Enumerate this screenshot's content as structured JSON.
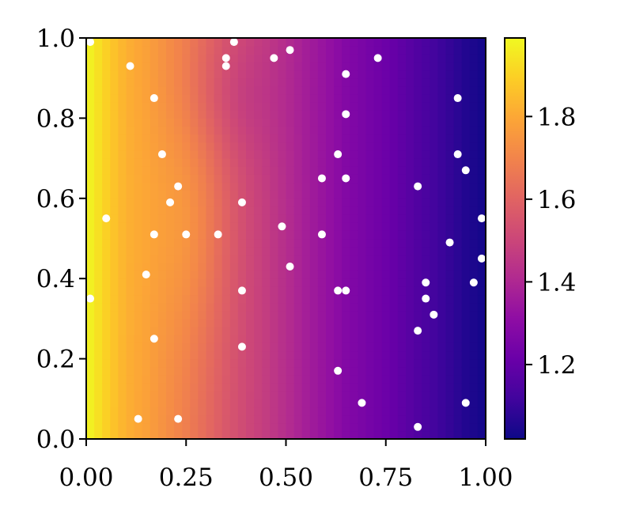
{
  "chart_data": {
    "type": "heatmap",
    "title": "",
    "xlabel": "",
    "ylabel": "",
    "xlim": [
      0.0,
      1.0
    ],
    "ylim": [
      0.0,
      1.0
    ],
    "x_ticks": [
      "0.00",
      "0.25",
      "0.50",
      "0.75",
      "1.00"
    ],
    "y_ticks": [
      "0.0",
      "0.2",
      "0.4",
      "0.6",
      "0.8",
      "1.0"
    ],
    "colormap": "plasma",
    "colorbar": {
      "range": [
        1.02,
        1.99
      ],
      "ticks": [
        "1.2",
        "1.4",
        "1.6",
        "1.8"
      ]
    },
    "grid": false,
    "heatmap_field": {
      "description_free": true,
      "x_profile": [
        [
          0.0,
          1.99
        ],
        [
          0.02,
          1.95
        ],
        [
          0.06,
          1.88
        ],
        [
          0.1,
          1.82
        ],
        [
          0.15,
          1.78
        ],
        [
          0.2,
          1.73
        ],
        [
          0.25,
          1.68
        ],
        [
          0.3,
          1.62
        ],
        [
          0.35,
          1.56
        ],
        [
          0.4,
          1.51
        ],
        [
          0.45,
          1.47
        ],
        [
          0.5,
          1.42
        ],
        [
          0.55,
          1.37
        ],
        [
          0.6,
          1.33
        ],
        [
          0.65,
          1.28
        ],
        [
          0.7,
          1.25
        ],
        [
          0.75,
          1.22
        ],
        [
          0.8,
          1.18
        ],
        [
          0.85,
          1.14
        ],
        [
          0.9,
          1.1
        ],
        [
          0.95,
          1.06
        ],
        [
          1.0,
          1.03
        ]
      ]
    },
    "scatter_points": [
      [
        0.01,
        0.99
      ],
      [
        0.11,
        0.93
      ],
      [
        0.17,
        0.85
      ],
      [
        0.19,
        0.71
      ],
      [
        0.23,
        0.63
      ],
      [
        0.21,
        0.59
      ],
      [
        0.05,
        0.55
      ],
      [
        0.17,
        0.51
      ],
      [
        0.25,
        0.51
      ],
      [
        0.33,
        0.51
      ],
      [
        0.15,
        0.41
      ],
      [
        0.01,
        0.35
      ],
      [
        0.17,
        0.25
      ],
      [
        0.13,
        0.05
      ],
      [
        0.23,
        0.05
      ],
      [
        0.37,
        0.99
      ],
      [
        0.35,
        0.95
      ],
      [
        0.35,
        0.93
      ],
      [
        0.47,
        0.95
      ],
      [
        0.51,
        0.97
      ],
      [
        0.39,
        0.59
      ],
      [
        0.49,
        0.53
      ],
      [
        0.51,
        0.43
      ],
      [
        0.39,
        0.37
      ],
      [
        0.39,
        0.23
      ],
      [
        0.59,
        0.65
      ],
      [
        0.59,
        0.51
      ],
      [
        0.63,
        0.71
      ],
      [
        0.65,
        0.65
      ],
      [
        0.65,
        0.91
      ],
      [
        0.65,
        0.81
      ],
      [
        0.63,
        0.37
      ],
      [
        0.65,
        0.37
      ],
      [
        0.63,
        0.17
      ],
      [
        0.69,
        0.09
      ],
      [
        0.73,
        0.95
      ],
      [
        0.83,
        0.63
      ],
      [
        0.83,
        0.27
      ],
      [
        0.83,
        0.03
      ],
      [
        0.85,
        0.39
      ],
      [
        0.85,
        0.35
      ],
      [
        0.87,
        0.31
      ],
      [
        0.91,
        0.49
      ],
      [
        0.93,
        0.85
      ],
      [
        0.93,
        0.71
      ],
      [
        0.95,
        0.67
      ],
      [
        0.95,
        0.09
      ],
      [
        0.97,
        0.39
      ],
      [
        0.99,
        0.55
      ],
      [
        0.99,
        0.45
      ]
    ],
    "marker_color": "#ffffff"
  }
}
